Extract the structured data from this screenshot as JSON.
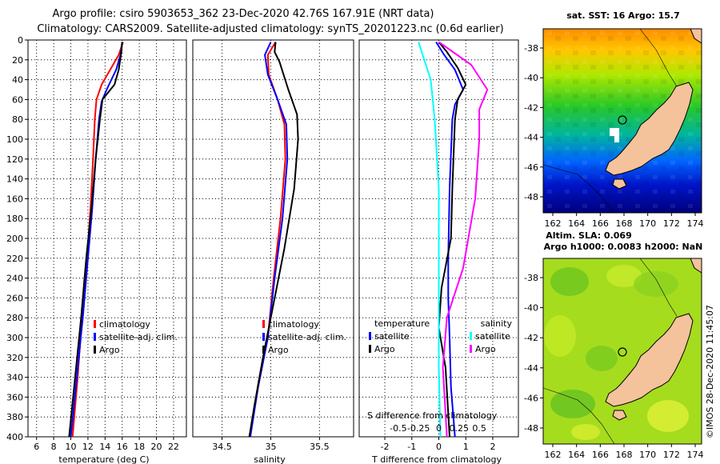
{
  "title_line1": "Argo profile: csiro 5903653_362 23-Dec-2020 42.76S 167.91E (NRT data)",
  "title_line2": "Climatology: CARS2009. Satellite-adjusted climatology: synTS_20201223.nc (0.6d earlier)",
  "credit": "©IMOS 28-Dec-2020 11:45:07",
  "colors": {
    "climatology": "#ff0000",
    "satellite": "#0000ff",
    "argo": "#000000",
    "sal_satellite": "#00ffff",
    "sal_argo": "#ff00ff",
    "land": "#f4c29b"
  },
  "chart_data": [
    {
      "type": "line",
      "id": "temperature",
      "xlabel": "temperature (deg C)",
      "xlim": [
        5,
        23.5
      ],
      "xticks": [
        6,
        8,
        10,
        12,
        14,
        16,
        18,
        20,
        22
      ],
      "ylim": [
        0,
        400
      ],
      "yticks": [
        0,
        20,
        40,
        60,
        80,
        100,
        120,
        140,
        160,
        180,
        200,
        220,
        240,
        260,
        280,
        300,
        320,
        340,
        360,
        380,
        400
      ],
      "legend": [
        "climatology",
        "satellite-adj. clim.",
        "Argo"
      ],
      "series": [
        {
          "name": "climatology",
          "color": "#ff0000",
          "points": [
            [
              16.1,
              2
            ],
            [
              15.6,
              15
            ],
            [
              14.6,
              30
            ],
            [
              13.6,
              45
            ],
            [
              13.0,
              60
            ],
            [
              12.8,
              80
            ],
            [
              12.6,
              120
            ],
            [
              12.3,
              170
            ],
            [
              11.9,
              220
            ],
            [
              11.3,
              280
            ],
            [
              10.8,
              340
            ],
            [
              10.2,
              400
            ]
          ]
        },
        {
          "name": "satellite-adj. clim.",
          "color": "#0000ff",
          "points": [
            [
              16.0,
              2
            ],
            [
              15.8,
              15
            ],
            [
              15.3,
              30
            ],
            [
              14.3,
              48
            ],
            [
              13.6,
              62
            ],
            [
              13.3,
              80
            ],
            [
              12.9,
              120
            ],
            [
              12.5,
              170
            ],
            [
              12.0,
              220
            ],
            [
              11.4,
              280
            ],
            [
              10.7,
              340
            ],
            [
              10.0,
              400
            ]
          ]
        },
        {
          "name": "Argo",
          "color": "#000000",
          "points": [
            [
              16.0,
              2
            ],
            [
              15.9,
              12
            ],
            [
              15.6,
              30
            ],
            [
              15.1,
              45
            ],
            [
              13.7,
              60
            ],
            [
              13.4,
              80
            ],
            [
              12.9,
              120
            ],
            [
              12.4,
              170
            ],
            [
              11.8,
              220
            ],
            [
              11.2,
              280
            ],
            [
              10.5,
              340
            ],
            [
              9.8,
              400
            ]
          ]
        }
      ]
    },
    {
      "type": "line",
      "id": "salinity",
      "xlabel": "salinity",
      "xlim": [
        34.2,
        35.85
      ],
      "xticks": [
        34.5,
        35,
        35.5
      ],
      "ylim": [
        0,
        400
      ],
      "legend": [
        "climatology",
        "satellite-adj. clim.",
        "Argo"
      ],
      "series": [
        {
          "name": "climatology",
          "color": "#ff0000",
          "points": [
            [
              35.05,
              2
            ],
            [
              34.97,
              15
            ],
            [
              34.98,
              35
            ],
            [
              35.07,
              60
            ],
            [
              35.14,
              85
            ],
            [
              35.15,
              120
            ],
            [
              35.1,
              180
            ],
            [
              35.03,
              240
            ],
            [
              34.97,
              300
            ],
            [
              34.87,
              350
            ],
            [
              34.78,
              400
            ]
          ]
        },
        {
          "name": "satellite-adj. clim.",
          "color": "#0000ff",
          "points": [
            [
              35.0,
              2
            ],
            [
              34.94,
              15
            ],
            [
              34.97,
              35
            ],
            [
              35.07,
              60
            ],
            [
              35.16,
              85
            ],
            [
              35.17,
              120
            ],
            [
              35.12,
              180
            ],
            [
              35.04,
              240
            ],
            [
              34.97,
              300
            ],
            [
              34.87,
              350
            ],
            [
              34.79,
              400
            ]
          ]
        },
        {
          "name": "Argo",
          "color": "#000000",
          "points": [
            [
              35.05,
              2
            ],
            [
              35.04,
              12
            ],
            [
              35.09,
              22
            ],
            [
              35.18,
              50
            ],
            [
              35.27,
              75
            ],
            [
              35.28,
              100
            ],
            [
              35.24,
              150
            ],
            [
              35.14,
              210
            ],
            [
              35.02,
              270
            ],
            [
              34.92,
              320
            ],
            [
              34.83,
              370
            ],
            [
              34.78,
              400
            ]
          ]
        }
      ]
    },
    {
      "type": "line",
      "id": "differences",
      "xlabel": "T difference from climatology",
      "xlabel2": "S difference from climatology",
      "xlim": [
        -2.95,
        2.95
      ],
      "xticks": [
        -2,
        -1,
        0,
        1,
        2
      ],
      "xticks2": [
        -0.5,
        -0.25,
        0,
        0.25,
        0.5
      ],
      "xticklabels2": [
        "-0.5",
        "-0.25",
        "0",
        "0.25",
        "0.5"
      ],
      "ylim": [
        0,
        400
      ],
      "legend_titles": [
        "temperature",
        "salinity"
      ],
      "legend": [
        "satellite",
        "Argo",
        "satellite",
        "Argo"
      ],
      "series": [
        {
          "name": "temperature satellite",
          "color": "#0000ff",
          "points": [
            [
              -0.1,
              2
            ],
            [
              0.2,
              15
            ],
            [
              0.6,
              30
            ],
            [
              0.9,
              50
            ],
            [
              0.6,
              65
            ],
            [
              0.5,
              80
            ],
            [
              0.4,
              150
            ],
            [
              0.35,
              220
            ],
            [
              0.35,
              260
            ],
            [
              0.4,
              300
            ],
            [
              0.45,
              350
            ],
            [
              0.6,
              400
            ]
          ]
        },
        {
          "name": "temperature Argo",
          "color": "#000000",
          "points": [
            [
              0.0,
              2
            ],
            [
              0.3,
              12
            ],
            [
              0.7,
              28
            ],
            [
              1.0,
              45
            ],
            [
              0.7,
              60
            ],
            [
              0.6,
              80
            ],
            [
              0.5,
              150
            ],
            [
              0.45,
              200
            ],
            [
              0.1,
              250
            ],
            [
              0.0,
              290
            ],
            [
              0.25,
              330
            ],
            [
              0.4,
              400
            ]
          ]
        },
        {
          "name": "salinity satellite",
          "color": "#00ffff",
          "points": [
            [
              -0.25,
              2
            ],
            [
              -0.2,
              15
            ],
            [
              -0.1,
              40
            ],
            [
              -0.05,
              80
            ],
            [
              0.0,
              150
            ],
            [
              0.0,
              250
            ],
            [
              0.0,
              330
            ],
            [
              0.02,
              400
            ]
          ]
        },
        {
          "name": "salinity Argo",
          "color": "#ff00ff",
          "points": [
            [
              0.0,
              2
            ],
            [
              0.4,
              25
            ],
            [
              0.6,
              50
            ],
            [
              0.5,
              70
            ],
            [
              0.5,
              100
            ],
            [
              0.45,
              160
            ],
            [
              0.3,
              230
            ],
            [
              0.1,
              280
            ],
            [
              0.05,
              330
            ],
            [
              0.1,
              400
            ]
          ]
        }
      ]
    }
  ],
  "map_top": {
    "title": "sat. SST: 16 Argo: 15.7",
    "xticks": [
      "162",
      "164",
      "166",
      "168",
      "170",
      "172",
      "174"
    ],
    "yticks": [
      "-38",
      "-40",
      "-42",
      "-44",
      "-46",
      "-48"
    ]
  },
  "map_bottom": {
    "title_line1": "Altim. SLA: 0.069",
    "title_line2": "Argo h1000: 0.0083 h2000: NaN",
    "xticks": [
      "162",
      "164",
      "166",
      "168",
      "170",
      "172",
      "174"
    ],
    "yticks": [
      "-38",
      "-40",
      "-42",
      "-44",
      "-46",
      "-48"
    ]
  }
}
